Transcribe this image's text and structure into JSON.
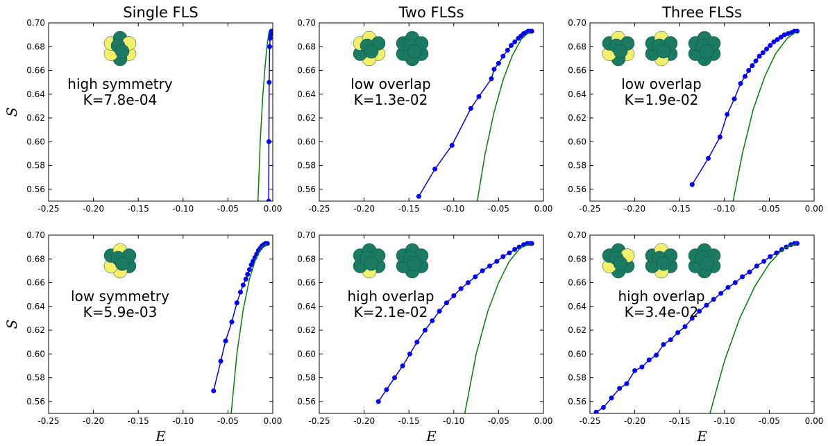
{
  "chart_data": [
    {
      "type": "line",
      "title": "Single FLS",
      "ylabel": "S",
      "annotations": [
        "high symmetry",
        "K=7.8e-04"
      ],
      "xlim": [
        -0.25,
        0
      ],
      "ylim": [
        0.55,
        0.7
      ],
      "xticks": [
        {
          "value": -0.25,
          "label": "-0.25"
        },
        {
          "value": -0.2,
          "label": "-0.20"
        },
        {
          "value": -0.15,
          "label": "-0.15"
        },
        {
          "value": -0.1,
          "label": "-0.10"
        },
        {
          "value": -0.05,
          "label": "-0.05"
        },
        {
          "value": 0,
          "label": "0.00"
        }
      ],
      "yticks": [
        0.56,
        0.58,
        {
          "value": 0.6,
          "label": "0.60"
        },
        0.62,
        0.64,
        0.66,
        0.68,
        {
          "value": 0.7,
          "label": "0.70"
        }
      ],
      "series": [
        {
          "color": "#0000ff",
          "markers": true,
          "x": [
            -0.0045,
            -0.0043,
            -0.004,
            -0.0035,
            -0.003,
            -0.0025,
            -0.002,
            -0.0015,
            -0.001
          ],
          "values": [
            0.55,
            0.6,
            0.65,
            0.68,
            0.687,
            0.69,
            0.692,
            0.693,
            0.693
          ]
        },
        {
          "color": "#008000",
          "markers": false,
          "x": [
            -0.017,
            -0.014,
            -0.011,
            -0.008,
            -0.006,
            -0.004
          ],
          "values": [
            0.54,
            0.6,
            0.64,
            0.668,
            0.683,
            0.693
          ]
        }
      ]
    },
    {
      "type": "line",
      "title": "Two FLSs",
      "annotations": [
        "low overlap",
        "K=1.3e-02"
      ],
      "xlim": [
        -0.25,
        0
      ],
      "ylim": [
        0.55,
        0.7
      ],
      "xticks": [
        {
          "value": -0.25,
          "label": "-0.25"
        },
        {
          "value": -0.2,
          "label": "-0.20"
        },
        {
          "value": -0.15,
          "label": "-0.15"
        },
        {
          "value": -0.1,
          "label": "-0.10"
        },
        {
          "value": -0.05,
          "label": "-0.05"
        },
        {
          "value": 0,
          "label": "0.00"
        }
      ],
      "yticks": [
        0.56,
        0.58,
        {
          "value": 0.6,
          "label": "0.60"
        },
        0.62,
        0.64,
        0.66,
        0.68,
        {
          "value": 0.7,
          "label": "0.70"
        }
      ],
      "series": [
        {
          "color": "#0000ff",
          "markers": true,
          "x": [
            -0.139,
            -0.121,
            -0.102,
            -0.081,
            -0.072,
            -0.058,
            -0.055,
            -0.05,
            -0.045,
            -0.04,
            -0.036,
            -0.032,
            -0.028,
            -0.025,
            -0.022,
            -0.019,
            -0.017,
            -0.015,
            -0.013
          ],
          "values": [
            0.554,
            0.577,
            0.597,
            0.628,
            0.638,
            0.653,
            0.661,
            0.666,
            0.672,
            0.677,
            0.681,
            0.684,
            0.687,
            0.689,
            0.691,
            0.692,
            0.693,
            0.693,
            0.693
          ]
        },
        {
          "color": "#008000",
          "markers": false,
          "x": [
            -0.076,
            -0.065,
            -0.055,
            -0.045,
            -0.035,
            -0.025,
            -0.015
          ],
          "values": [
            0.54,
            0.59,
            0.625,
            0.652,
            0.672,
            0.686,
            0.693
          ]
        }
      ]
    },
    {
      "type": "line",
      "title": "Three FLSs",
      "annotations": [
        "low overlap",
        "K=1.9e-02"
      ],
      "xlim": [
        -0.25,
        0
      ],
      "ylim": [
        0.55,
        0.7
      ],
      "xticks": [
        {
          "value": -0.25,
          "label": "-0.25"
        },
        {
          "value": -0.2,
          "label": "-0.20"
        },
        {
          "value": -0.15,
          "label": "-0.15"
        },
        {
          "value": -0.1,
          "label": "-0.10"
        },
        {
          "value": -0.05,
          "label": "-0.05"
        },
        {
          "value": 0,
          "label": "0.00"
        }
      ],
      "yticks": [
        0.56,
        0.58,
        {
          "value": 0.6,
          "label": "0.60"
        },
        0.62,
        0.64,
        0.66,
        0.68,
        {
          "value": 0.7,
          "label": "0.70"
        }
      ],
      "series": [
        {
          "color": "#0000ff",
          "markers": true,
          "x": [
            -0.136,
            -0.118,
            -0.105,
            -0.097,
            -0.089,
            -0.082,
            -0.077,
            -0.073,
            -0.069,
            -0.065,
            -0.061,
            -0.057,
            -0.053,
            -0.049,
            -0.045,
            -0.041,
            -0.037,
            -0.033,
            -0.029,
            -0.025,
            -0.022,
            -0.019
          ],
          "values": [
            0.564,
            0.586,
            0.604,
            0.623,
            0.636,
            0.649,
            0.655,
            0.66,
            0.664,
            0.668,
            0.672,
            0.675,
            0.678,
            0.681,
            0.684,
            0.686,
            0.688,
            0.69,
            0.691,
            0.692,
            0.693,
            0.693
          ]
        },
        {
          "color": "#008000",
          "markers": false,
          "x": [
            -0.093,
            -0.08,
            -0.068,
            -0.055,
            -0.043,
            -0.03,
            -0.019
          ],
          "values": [
            0.54,
            0.59,
            0.627,
            0.655,
            0.674,
            0.687,
            0.693
          ]
        }
      ]
    },
    {
      "type": "line",
      "ylabel": "S",
      "xlabel": "E",
      "annotations": [
        "low symmetry",
        "K=5.9e-03"
      ],
      "xlim": [
        -0.25,
        0
      ],
      "ylim": [
        0.55,
        0.7
      ],
      "xticks": [
        {
          "value": -0.25,
          "label": "-0.25"
        },
        {
          "value": -0.2,
          "label": "-0.20"
        },
        {
          "value": -0.15,
          "label": "-0.15"
        },
        {
          "value": -0.1,
          "label": "-0.10"
        },
        {
          "value": -0.05,
          "label": "-0.05"
        },
        {
          "value": 0,
          "label": "0.00"
        }
      ],
      "yticks": [
        0.56,
        0.58,
        {
          "value": 0.6,
          "label": "0.60"
        },
        0.62,
        0.64,
        0.66,
        0.68,
        {
          "value": 0.7,
          "label": "0.70"
        }
      ],
      "series": [
        {
          "color": "#0000ff",
          "markers": true,
          "x": [
            -0.066,
            -0.058,
            -0.0526,
            -0.0457,
            -0.04,
            -0.036,
            -0.033,
            -0.03,
            -0.028,
            -0.026,
            -0.024,
            -0.022,
            -0.02,
            -0.018,
            -0.016,
            -0.014,
            -0.012,
            -0.01,
            -0.008,
            -0.006
          ],
          "values": [
            0.569,
            0.594,
            0.611,
            0.627,
            0.643,
            0.652,
            0.658,
            0.663,
            0.667,
            0.671,
            0.675,
            0.678,
            0.681,
            0.684,
            0.687,
            0.689,
            0.691,
            0.692,
            0.693,
            0.693
          ]
        },
        {
          "color": "#008000",
          "markers": false,
          "x": [
            -0.047,
            -0.04,
            -0.033,
            -0.026,
            -0.019,
            -0.012,
            -0.006
          ],
          "values": [
            0.545,
            0.6,
            0.637,
            0.663,
            0.68,
            0.69,
            0.693
          ]
        }
      ]
    },
    {
      "type": "line",
      "xlabel": "E",
      "annotations": [
        "high overlap",
        "K=2.1e-02"
      ],
      "xlim": [
        -0.25,
        0
      ],
      "ylim": [
        0.55,
        0.7
      ],
      "xticks": [
        {
          "value": -0.25,
          "label": "-0.25"
        },
        {
          "value": -0.2,
          "label": "-0.20"
        },
        {
          "value": -0.15,
          "label": "-0.15"
        },
        {
          "value": -0.1,
          "label": "-0.10"
        },
        {
          "value": -0.05,
          "label": "-0.05"
        },
        {
          "value": 0,
          "label": "0.00"
        }
      ],
      "yticks": [
        0.56,
        0.58,
        {
          "value": 0.6,
          "label": "0.60"
        },
        0.62,
        0.64,
        0.66,
        0.68,
        {
          "value": 0.7,
          "label": "0.70"
        }
      ],
      "series": [
        {
          "color": "#0000ff",
          "markers": true,
          "x": [
            -0.184,
            -0.175,
            -0.166,
            -0.157,
            -0.149,
            -0.141,
            -0.132,
            -0.124,
            -0.116,
            -0.108,
            -0.1,
            -0.092,
            -0.084,
            -0.076,
            -0.068,
            -0.06,
            -0.052,
            -0.045,
            -0.038,
            -0.032,
            -0.027,
            -0.022,
            -0.018,
            -0.015,
            -0.013
          ],
          "values": [
            0.56,
            0.57,
            0.58,
            0.59,
            0.6,
            0.61,
            0.62,
            0.628,
            0.636,
            0.643,
            0.649,
            0.655,
            0.66,
            0.665,
            0.67,
            0.674,
            0.678,
            0.682,
            0.685,
            0.688,
            0.69,
            0.692,
            0.693,
            0.693,
            0.693
          ]
        },
        {
          "color": "#008000",
          "markers": false,
          "x": [
            -0.089,
            -0.075,
            -0.062,
            -0.05,
            -0.038,
            -0.026,
            -0.014
          ],
          "values": [
            0.545,
            0.6,
            0.636,
            0.66,
            0.678,
            0.689,
            0.693
          ]
        }
      ]
    },
    {
      "type": "line",
      "xlabel": "E",
      "annotations": [
        "high overlap",
        "K=3.4e-02"
      ],
      "xlim": [
        -0.25,
        0
      ],
      "ylim": [
        0.55,
        0.7
      ],
      "xticks": [
        {
          "value": -0.25,
          "label": "-0.25"
        },
        {
          "value": -0.2,
          "label": "-0.20"
        },
        {
          "value": -0.15,
          "label": "-0.15"
        },
        {
          "value": -0.1,
          "label": "-0.10"
        },
        {
          "value": -0.05,
          "label": "-0.05"
        },
        {
          "value": 0,
          "label": "0.00"
        }
      ],
      "yticks": [
        0.56,
        0.58,
        {
          "value": 0.6,
          "label": "0.60"
        },
        0.62,
        0.64,
        0.66,
        0.68,
        {
          "value": 0.7,
          "label": "0.70"
        }
      ],
      "series": [
        {
          "color": "#0000ff",
          "markers": true,
          "x": [
            -0.243,
            -0.235,
            -0.226,
            -0.217,
            -0.209,
            -0.2,
            -0.192,
            -0.184,
            -0.176,
            -0.168,
            -0.16,
            -0.152,
            -0.144,
            -0.136,
            -0.128,
            -0.12,
            -0.112,
            -0.104,
            -0.096,
            -0.088,
            -0.08,
            -0.072,
            -0.064,
            -0.056,
            -0.049,
            -0.042,
            -0.036,
            -0.031,
            -0.026,
            -0.022,
            -0.019
          ],
          "values": [
            0.551,
            0.555,
            0.563,
            0.571,
            0.575,
            0.586,
            0.589,
            0.595,
            0.599,
            0.608,
            0.612,
            0.618,
            0.623,
            0.63,
            0.636,
            0.641,
            0.646,
            0.651,
            0.656,
            0.66,
            0.665,
            0.669,
            0.674,
            0.678,
            0.682,
            0.685,
            0.688,
            0.69,
            0.692,
            0.693,
            0.693
          ]
        },
        {
          "color": "#008000",
          "markers": false,
          "x": [
            -0.118,
            -0.1,
            -0.083,
            -0.066,
            -0.05,
            -0.034,
            -0.019
          ],
          "values": [
            0.545,
            0.594,
            0.63,
            0.657,
            0.676,
            0.689,
            0.693
          ]
        }
      ]
    }
  ]
}
